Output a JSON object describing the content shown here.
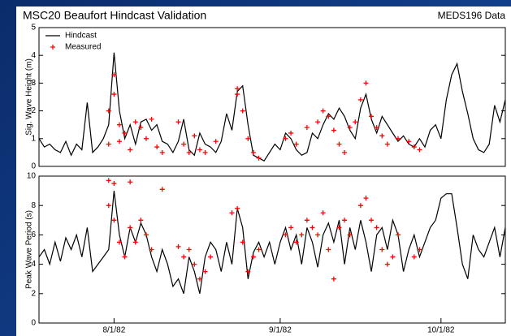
{
  "chart_data": [
    {
      "type": "line",
      "title": "MSC20 Beaufort Hindcast Validation",
      "source": "MEDS196 Data",
      "ylabel": "Sig. Wave Height (m)",
      "ylim": [
        0,
        5
      ],
      "yticks": [
        0,
        1,
        2,
        3,
        4,
        5
      ],
      "xlim": [
        "1982-07-18",
        "1982-10-13"
      ],
      "legend": "upper left",
      "series": [
        {
          "name": "Hindcast",
          "color": "#000000",
          "mode": "line",
          "x": [
            "1982-07-18",
            "1982-07-19",
            "1982-07-20",
            "1982-07-21",
            "1982-07-22",
            "1982-07-23",
            "1982-07-24",
            "1982-07-25",
            "1982-07-26",
            "1982-07-27",
            "1982-07-28",
            "1982-07-29",
            "1982-07-30",
            "1982-07-31",
            "1982-08-01",
            "1982-08-02",
            "1982-08-03",
            "1982-08-04",
            "1982-08-05",
            "1982-08-06",
            "1982-08-07",
            "1982-08-08",
            "1982-08-09",
            "1982-08-10",
            "1982-08-11",
            "1982-08-12",
            "1982-08-13",
            "1982-08-14",
            "1982-08-15",
            "1982-08-16",
            "1982-08-17",
            "1982-08-18",
            "1982-08-19",
            "1982-08-20",
            "1982-08-21",
            "1982-08-22",
            "1982-08-23",
            "1982-08-24",
            "1982-08-25",
            "1982-08-26",
            "1982-08-27",
            "1982-08-28",
            "1982-08-29",
            "1982-08-30",
            "1982-08-31",
            "1982-09-01",
            "1982-09-02",
            "1982-09-03",
            "1982-09-04",
            "1982-09-05",
            "1982-09-06",
            "1982-09-07",
            "1982-09-08",
            "1982-09-09",
            "1982-09-10",
            "1982-09-11",
            "1982-09-12",
            "1982-09-13",
            "1982-09-14",
            "1982-09-15",
            "1982-09-16",
            "1982-09-17",
            "1982-09-18",
            "1982-09-19",
            "1982-09-20",
            "1982-09-21",
            "1982-09-22",
            "1982-09-23",
            "1982-09-24",
            "1982-09-25",
            "1982-09-26",
            "1982-09-27",
            "1982-09-28",
            "1982-09-29",
            "1982-09-30",
            "1982-10-01",
            "1982-10-02",
            "1982-10-03",
            "1982-10-04",
            "1982-10-05",
            "1982-10-06",
            "1982-10-07",
            "1982-10-08",
            "1982-10-09",
            "1982-10-10",
            "1982-10-11",
            "1982-10-12",
            "1982-10-13"
          ],
          "values": [
            1.0,
            0.7,
            0.8,
            0.6,
            0.5,
            0.9,
            0.4,
            0.8,
            0.6,
            2.3,
            0.5,
            0.7,
            1.0,
            1.5,
            4.1,
            2.0,
            1.0,
            1.5,
            0.8,
            1.6,
            1.7,
            1.3,
            1.5,
            0.9,
            0.8,
            0.5,
            0.9,
            1.7,
            0.6,
            0.4,
            1.2,
            0.8,
            0.7,
            0.5,
            0.9,
            1.9,
            1.3,
            2.7,
            2.9,
            1.5,
            0.4,
            0.3,
            0.2,
            0.5,
            0.8,
            0.6,
            1.2,
            1.0,
            0.6,
            0.4,
            0.5,
            1.2,
            1.0,
            1.5,
            1.9,
            1.7,
            2.1,
            1.8,
            1.3,
            1.0,
            2.1,
            2.6,
            1.7,
            1.2,
            1.8,
            1.5,
            1.2,
            0.9,
            1.1,
            0.8,
            0.7,
            1.0,
            0.7,
            1.3,
            1.5,
            1.0,
            2.4,
            3.3,
            3.7,
            2.7,
            1.9,
            1.0,
            0.6,
            0.5,
            0.8,
            2.2,
            1.6,
            2.4
          ]
        },
        {
          "name": "Measured",
          "color": "#ff0000",
          "mode": "markers",
          "x": [
            "1982-07-31",
            "1982-07-31",
            "1982-08-01",
            "1982-08-01",
            "1982-08-02",
            "1982-08-02",
            "1982-08-03",
            "1982-08-04",
            "1982-08-05",
            "1982-08-06",
            "1982-08-07",
            "1982-08-08",
            "1982-08-09",
            "1982-08-10",
            "1982-08-13",
            "1982-08-14",
            "1982-08-15",
            "1982-08-16",
            "1982-08-17",
            "1982-08-18",
            "1982-08-20",
            "1982-08-24",
            "1982-08-24",
            "1982-08-25",
            "1982-08-26",
            "1982-08-27",
            "1982-08-28",
            "1982-09-02",
            "1982-09-03",
            "1982-09-04",
            "1982-09-06",
            "1982-09-08",
            "1982-09-09",
            "1982-09-10",
            "1982-09-11",
            "1982-09-12",
            "1982-09-13",
            "1982-09-14",
            "1982-09-15",
            "1982-09-16",
            "1982-09-17",
            "1982-09-18",
            "1982-09-19",
            "1982-09-20",
            "1982-09-21",
            "1982-09-23",
            "1982-09-25",
            "1982-09-26",
            "1982-09-27"
          ],
          "values": [
            0.8,
            2.0,
            3.3,
            2.6,
            1.5,
            0.9,
            1.2,
            0.6,
            1.6,
            1.4,
            1.0,
            1.7,
            0.7,
            0.5,
            1.6,
            0.8,
            0.5,
            1.1,
            0.6,
            0.5,
            0.9,
            2.6,
            2.8,
            2.0,
            1.0,
            0.5,
            0.3,
            1.0,
            1.2,
            0.8,
            1.4,
            1.6,
            2.0,
            1.8,
            1.3,
            0.8,
            0.5,
            1.4,
            1.6,
            2.4,
            3.0,
            1.8,
            1.4,
            1.1,
            0.8,
            1.0,
            0.9,
            0.7,
            0.6
          ]
        }
      ]
    },
    {
      "type": "line",
      "ylabel": "Peak Wave Period (s)",
      "ylim": [
        0,
        10
      ],
      "yticks": [
        0,
        2,
        4,
        6,
        8,
        10
      ],
      "xlim": [
        "1982-07-18",
        "1982-10-13"
      ],
      "xticks": [
        {
          "value": "1982-08-01",
          "label": "8/1/82"
        },
        {
          "value": "1982-09-01",
          "label": "9/1/82"
        },
        {
          "value": "1982-10-01",
          "label": "10/1/82"
        }
      ],
      "series": [
        {
          "color": "#000000",
          "mode": "line",
          "x": [
            "1982-07-18",
            "1982-07-19",
            "1982-07-20",
            "1982-07-21",
            "1982-07-22",
            "1982-07-23",
            "1982-07-24",
            "1982-07-25",
            "1982-07-26",
            "1982-07-27",
            "1982-07-28",
            "1982-07-29",
            "1982-07-30",
            "1982-07-31",
            "1982-08-01",
            "1982-08-02",
            "1982-08-03",
            "1982-08-04",
            "1982-08-05",
            "1982-08-06",
            "1982-08-07",
            "1982-08-08",
            "1982-08-09",
            "1982-08-10",
            "1982-08-11",
            "1982-08-12",
            "1982-08-13",
            "1982-08-14",
            "1982-08-15",
            "1982-08-16",
            "1982-08-17",
            "1982-08-18",
            "1982-08-19",
            "1982-08-20",
            "1982-08-21",
            "1982-08-22",
            "1982-08-23",
            "1982-08-24",
            "1982-08-25",
            "1982-08-26",
            "1982-08-27",
            "1982-08-28",
            "1982-08-29",
            "1982-08-30",
            "1982-08-31",
            "1982-09-01",
            "1982-09-02",
            "1982-09-03",
            "1982-09-04",
            "1982-09-05",
            "1982-09-06",
            "1982-09-07",
            "1982-09-08",
            "1982-09-09",
            "1982-09-10",
            "1982-09-11",
            "1982-09-12",
            "1982-09-13",
            "1982-09-14",
            "1982-09-15",
            "1982-09-16",
            "1982-09-17",
            "1982-09-18",
            "1982-09-19",
            "1982-09-20",
            "1982-09-21",
            "1982-09-22",
            "1982-09-23",
            "1982-09-24",
            "1982-09-25",
            "1982-09-26",
            "1982-09-27",
            "1982-09-28",
            "1982-09-29",
            "1982-09-30",
            "1982-10-01",
            "1982-10-02",
            "1982-10-03",
            "1982-10-04",
            "1982-10-05",
            "1982-10-06",
            "1982-10-07",
            "1982-10-08",
            "1982-10-09",
            "1982-10-10",
            "1982-10-11",
            "1982-10-12",
            "1982-10-13"
          ],
          "values": [
            4.5,
            5.0,
            4.0,
            5.5,
            4.2,
            5.8,
            5.0,
            6.0,
            4.5,
            6.5,
            3.5,
            4.0,
            4.5,
            5.0,
            9.0,
            6.0,
            4.5,
            6.5,
            5.5,
            6.8,
            6.0,
            4.5,
            3.5,
            5.0,
            4.0,
            2.5,
            3.0,
            2.0,
            4.5,
            3.5,
            2.0,
            4.5,
            5.5,
            5.0,
            3.5,
            5.5,
            4.0,
            7.8,
            6.5,
            3.0,
            4.8,
            5.5,
            4.5,
            5.5,
            4.0,
            5.5,
            6.5,
            5.0,
            6.0,
            4.0,
            6.5,
            5.5,
            3.8,
            6.0,
            6.8,
            5.5,
            7.0,
            4.0,
            6.5,
            5.0,
            7.0,
            5.5,
            3.5,
            6.0,
            6.5,
            5.0,
            7.0,
            6.0,
            3.5,
            5.0,
            6.0,
            4.5,
            5.5,
            6.5,
            7.0,
            8.5,
            8.8,
            8.8,
            6.5,
            4.0,
            3.0,
            6.0,
            5.0,
            4.5,
            5.5,
            6.5,
            4.5,
            6.5
          ]
        },
        {
          "color": "#ff0000",
          "mode": "markers",
          "x": [
            "1982-07-31",
            "1982-07-31",
            "1982-08-01",
            "1982-08-01",
            "1982-08-02",
            "1982-08-03",
            "1982-08-04",
            "1982-08-04",
            "1982-08-05",
            "1982-08-06",
            "1982-08-07",
            "1982-08-08",
            "1982-08-10",
            "1982-08-13",
            "1982-08-14",
            "1982-08-15",
            "1982-08-16",
            "1982-08-17",
            "1982-08-18",
            "1982-08-19",
            "1982-08-23",
            "1982-08-24",
            "1982-08-25",
            "1982-08-26",
            "1982-08-27",
            "1982-08-28",
            "1982-09-02",
            "1982-09-03",
            "1982-09-04",
            "1982-09-05",
            "1982-09-06",
            "1982-09-07",
            "1982-09-08",
            "1982-09-09",
            "1982-09-10",
            "1982-09-11",
            "1982-09-12",
            "1982-09-13",
            "1982-09-14",
            "1982-09-16",
            "1982-09-17",
            "1982-09-18",
            "1982-09-19",
            "1982-09-20",
            "1982-09-21",
            "1982-09-22",
            "1982-09-23",
            "1982-09-26",
            "1982-09-27"
          ],
          "values": [
            8.0,
            9.7,
            9.5,
            7.0,
            5.5,
            4.5,
            9.6,
            6.5,
            5.5,
            7.0,
            6.0,
            5.0,
            9.1,
            5.2,
            4.5,
            5.0,
            4.0,
            3.0,
            3.5,
            4.5,
            7.5,
            7.8,
            5.5,
            3.5,
            4.5,
            5.0,
            6.0,
            6.5,
            5.5,
            6.0,
            7.0,
            6.5,
            6.0,
            7.5,
            5.0,
            3.0,
            6.5,
            7.0,
            6.0,
            8.0,
            8.5,
            7.0,
            6.5,
            5.0,
            4.0,
            4.5,
            6.0,
            4.5,
            5.0
          ]
        }
      ]
    }
  ]
}
